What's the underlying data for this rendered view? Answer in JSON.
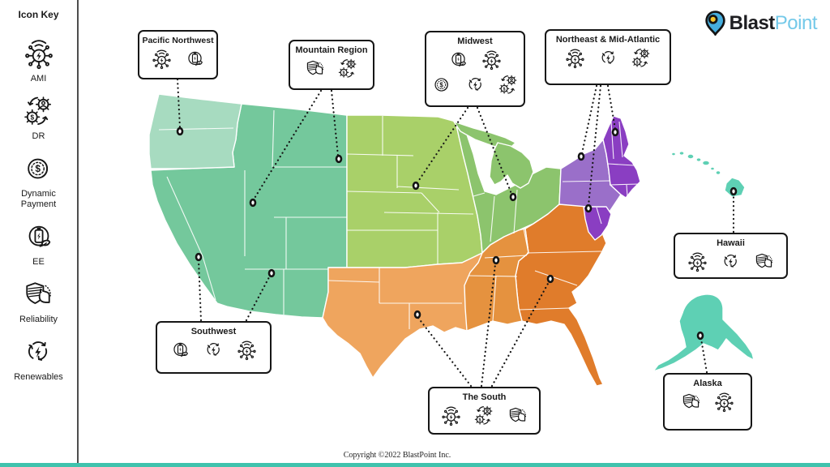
{
  "brand": {
    "name_bold": "Blast",
    "name_light": "Point"
  },
  "sidebar": {
    "title": "Icon Key",
    "items": [
      {
        "icon": "ami",
        "label": "AMI"
      },
      {
        "icon": "dr",
        "label": "DR"
      },
      {
        "icon": "dynamic-payment",
        "label": "Dynamic Payment"
      },
      {
        "icon": "ee",
        "label": "EE"
      },
      {
        "icon": "reliability",
        "label": "Reliability"
      },
      {
        "icon": "renewables",
        "label": "Renewables"
      }
    ]
  },
  "regions": {
    "pacific_northwest": {
      "title": "Pacific Northwest",
      "icon_rows": [
        [
          "ami",
          "ee"
        ]
      ]
    },
    "mountain": {
      "title": "Mountain Region",
      "icon_rows": [
        [
          "reliability",
          "dr"
        ]
      ]
    },
    "midwest": {
      "title": "Midwest",
      "icon_rows": [
        [
          "ee",
          "ami"
        ],
        [
          "dynamic-payment",
          "renewables",
          "dr"
        ]
      ]
    },
    "northeast": {
      "title": "Northeast & Mid-Atlantic",
      "icon_rows": [
        [
          "ami",
          "renewables",
          "dr"
        ]
      ]
    },
    "southwest": {
      "title": "Southwest",
      "icon_rows": [
        [
          "ee",
          "renewables",
          "ami"
        ]
      ]
    },
    "south": {
      "title": "The South",
      "icon_rows": [
        [
          "ami",
          "dr",
          "reliability"
        ]
      ]
    },
    "hawaii": {
      "title": "Hawaii",
      "icon_rows": [
        [
          "ami",
          "renewables",
          "reliability"
        ]
      ]
    },
    "alaska": {
      "title": "Alaska",
      "icon_rows": [
        [
          "reliability",
          "ami"
        ]
      ]
    }
  },
  "map_colors": {
    "pacific_northwest": "#a7dbc0",
    "west": "#74c89c",
    "midwest_light": "#a9d069",
    "midwest_dark": "#8cc46d",
    "northeast_light": "#9a6fc9",
    "northeast_dark": "#8a3ec2",
    "south_light": "#efa55e",
    "south_mid": "#e5923f",
    "south_dark": "#e07c2b",
    "alaska_hawaii": "#5ed0b4",
    "bottom_bar": "#3fc3ad",
    "logo_blue": "#45aede",
    "logo_yellow": "#f6c62f"
  },
  "footer": {
    "copyright": "Copyright ©2022 BlastPoint Inc."
  }
}
